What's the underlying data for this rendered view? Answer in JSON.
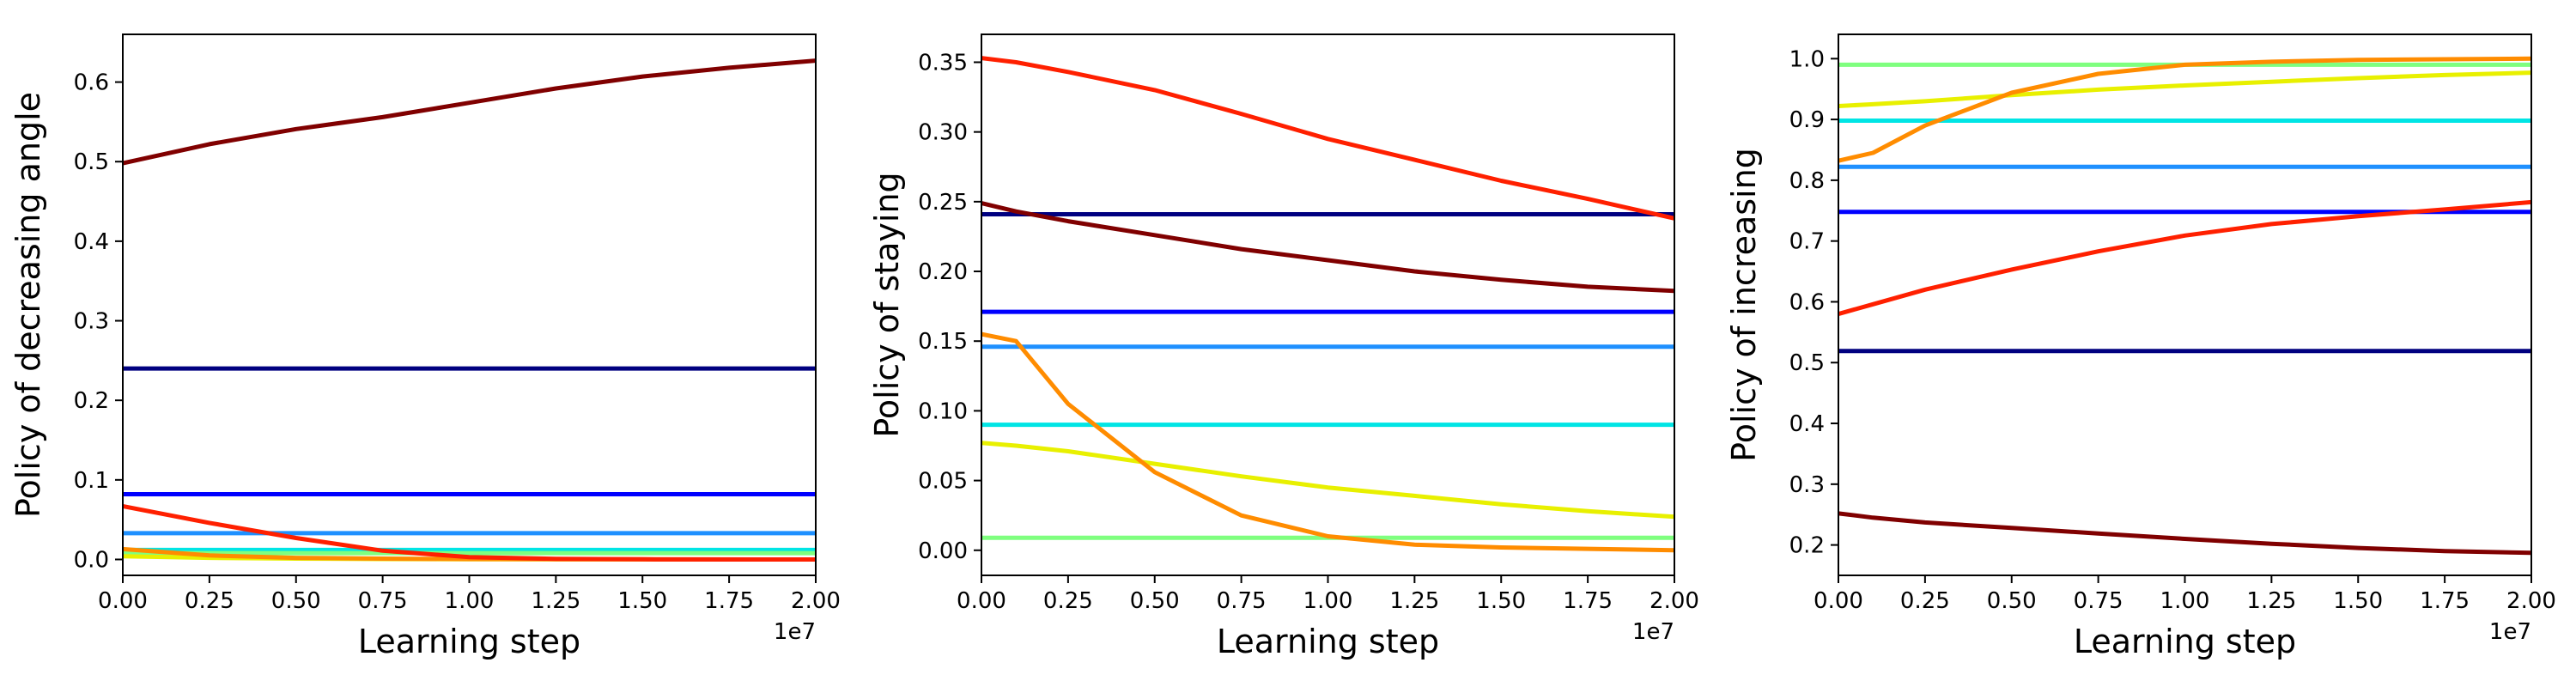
{
  "chart_data": [
    {
      "type": "line",
      "xlabel": "Learning step",
      "ylabel": "Policy of decreasing angle",
      "x_offset_label": "1e7",
      "xlim": [
        0,
        2.0
      ],
      "ylim": [
        -0.02,
        0.66
      ],
      "x_ticks": [
        "0.00",
        "0.25",
        "0.50",
        "0.75",
        "1.00",
        "1.25",
        "1.50",
        "1.75",
        "2.00"
      ],
      "y_ticks": [
        "0.0",
        "0.1",
        "0.2",
        "0.3",
        "0.4",
        "0.5",
        "0.6"
      ],
      "grid": false,
      "x": [
        0,
        0.25,
        0.5,
        0.75,
        1.0,
        1.25,
        1.5,
        1.75,
        2.0
      ],
      "series": [
        {
          "color": "#000080",
          "values": [
            0.24,
            0.24,
            0.24,
            0.24,
            0.24,
            0.24,
            0.24,
            0.24,
            0.24
          ]
        },
        {
          "color": "#0000ff",
          "values": [
            0.082,
            0.082,
            0.082,
            0.082,
            0.082,
            0.082,
            0.082,
            0.082,
            0.082
          ]
        },
        {
          "color": "#1e90ff",
          "values": [
            0.033,
            0.033,
            0.033,
            0.033,
            0.033,
            0.033,
            0.033,
            0.033,
            0.033
          ]
        },
        {
          "color": "#00e5e5",
          "values": [
            0.012,
            0.012,
            0.012,
            0.012,
            0.012,
            0.012,
            0.012,
            0.012,
            0.012
          ]
        },
        {
          "color": "#7fff7f",
          "values": [
            0.008,
            0.008,
            0.008,
            0.008,
            0.008,
            0.008,
            0.008,
            0.008,
            0.008
          ]
        },
        {
          "color": "#e8f000",
          "values": [
            0.004,
            0.002,
            0.001,
            0.0005,
            0.0003,
            0.0002,
            0.0001,
            0.0,
            0.0
          ]
        },
        {
          "color": "#ff8c00",
          "values": [
            0.013,
            0.005,
            0.002,
            0.001,
            0.0005,
            0.0003,
            0.0002,
            0.0001,
            0.0
          ]
        },
        {
          "color": "#ff2000",
          "values": [
            0.067,
            0.046,
            0.027,
            0.011,
            0.003,
            0.0007,
            0.0002,
            0.0,
            0.0
          ]
        },
        {
          "color": "#800000",
          "values": [
            0.498,
            0.522,
            0.541,
            0.556,
            0.574,
            0.592,
            0.607,
            0.618,
            0.627
          ]
        }
      ]
    },
    {
      "type": "line",
      "xlabel": "Learning step",
      "ylabel": "Policy of staying",
      "x_offset_label": "1e7",
      "xlim": [
        0,
        2.0
      ],
      "ylim": [
        -0.018,
        0.37
      ],
      "x_ticks": [
        "0.00",
        "0.25",
        "0.50",
        "0.75",
        "1.00",
        "1.25",
        "1.50",
        "1.75",
        "2.00"
      ],
      "y_ticks": [
        "0.00",
        "0.05",
        "0.10",
        "0.15",
        "0.20",
        "0.25",
        "0.30",
        "0.35"
      ],
      "grid": false,
      "x": [
        0,
        0.1,
        0.25,
        0.5,
        0.75,
        1.0,
        1.25,
        1.5,
        1.75,
        2.0
      ],
      "series": [
        {
          "color": "#000080",
          "values": [
            0.241,
            0.241,
            0.241,
            0.241,
            0.241,
            0.241,
            0.241,
            0.241,
            0.241,
            0.241
          ]
        },
        {
          "color": "#0000ff",
          "values": [
            0.171,
            0.171,
            0.171,
            0.171,
            0.171,
            0.171,
            0.171,
            0.171,
            0.171,
            0.171
          ]
        },
        {
          "color": "#1e90ff",
          "values": [
            0.146,
            0.146,
            0.146,
            0.146,
            0.146,
            0.146,
            0.146,
            0.146,
            0.146,
            0.146
          ]
        },
        {
          "color": "#00e5e5",
          "values": [
            0.09,
            0.09,
            0.09,
            0.09,
            0.09,
            0.09,
            0.09,
            0.09,
            0.09,
            0.09
          ]
        },
        {
          "color": "#7fff7f",
          "values": [
            0.009,
            0.009,
            0.009,
            0.009,
            0.009,
            0.009,
            0.009,
            0.009,
            0.009,
            0.009
          ]
        },
        {
          "color": "#e8f000",
          "values": [
            0.077,
            0.075,
            0.071,
            0.062,
            0.053,
            0.045,
            0.039,
            0.033,
            0.028,
            0.024
          ]
        },
        {
          "color": "#ff8c00",
          "values": [
            0.155,
            0.15,
            0.105,
            0.056,
            0.025,
            0.01,
            0.004,
            0.002,
            0.001,
            0.0
          ]
        },
        {
          "color": "#ff2000",
          "values": [
            0.353,
            0.35,
            0.343,
            0.33,
            0.313,
            0.295,
            0.28,
            0.265,
            0.252,
            0.238
          ]
        },
        {
          "color": "#800000",
          "values": [
            0.249,
            0.243,
            0.236,
            0.226,
            0.216,
            0.208,
            0.2,
            0.194,
            0.189,
            0.186
          ]
        }
      ]
    },
    {
      "type": "line",
      "xlabel": "Learning step",
      "ylabel": "Policy of increasing",
      "x_offset_label": "1e7",
      "xlim": [
        0,
        2.0
      ],
      "ylim": [
        0.15,
        1.04
      ],
      "x_ticks": [
        "0.00",
        "0.25",
        "0.50",
        "0.75",
        "1.00",
        "1.25",
        "1.50",
        "1.75",
        "2.00"
      ],
      "y_ticks": [
        "0.2",
        "0.3",
        "0.4",
        "0.5",
        "0.6",
        "0.7",
        "0.8",
        "0.9",
        "1.0"
      ],
      "grid": false,
      "x": [
        0,
        0.1,
        0.25,
        0.5,
        0.75,
        1.0,
        1.25,
        1.5,
        1.75,
        2.0
      ],
      "series": [
        {
          "color": "#000080",
          "values": [
            0.519,
            0.519,
            0.519,
            0.519,
            0.519,
            0.519,
            0.519,
            0.519,
            0.519,
            0.519
          ]
        },
        {
          "color": "#0000ff",
          "values": [
            0.748,
            0.748,
            0.748,
            0.748,
            0.748,
            0.748,
            0.748,
            0.748,
            0.748,
            0.748
          ]
        },
        {
          "color": "#1e90ff",
          "values": [
            0.822,
            0.822,
            0.822,
            0.822,
            0.822,
            0.822,
            0.822,
            0.822,
            0.822,
            0.822
          ]
        },
        {
          "color": "#00e5e5",
          "values": [
            0.898,
            0.898,
            0.898,
            0.898,
            0.898,
            0.898,
            0.898,
            0.898,
            0.898,
            0.898
          ]
        },
        {
          "color": "#7fff7f",
          "values": [
            0.99,
            0.99,
            0.99,
            0.99,
            0.99,
            0.99,
            0.99,
            0.99,
            0.99,
            0.99
          ]
        },
        {
          "color": "#e8f000",
          "values": [
            0.922,
            0.925,
            0.93,
            0.94,
            0.949,
            0.956,
            0.962,
            0.968,
            0.973,
            0.977
          ]
        },
        {
          "color": "#ff8c00",
          "values": [
            0.832,
            0.845,
            0.89,
            0.944,
            0.975,
            0.99,
            0.995,
            0.998,
            0.999,
            1.0
          ]
        },
        {
          "color": "#ff2000",
          "values": [
            0.58,
            0.596,
            0.62,
            0.653,
            0.683,
            0.709,
            0.728,
            0.741,
            0.752,
            0.764
          ]
        },
        {
          "color": "#800000",
          "values": [
            0.252,
            0.245,
            0.237,
            0.228,
            0.219,
            0.21,
            0.202,
            0.195,
            0.19,
            0.187
          ]
        }
      ]
    }
  ]
}
